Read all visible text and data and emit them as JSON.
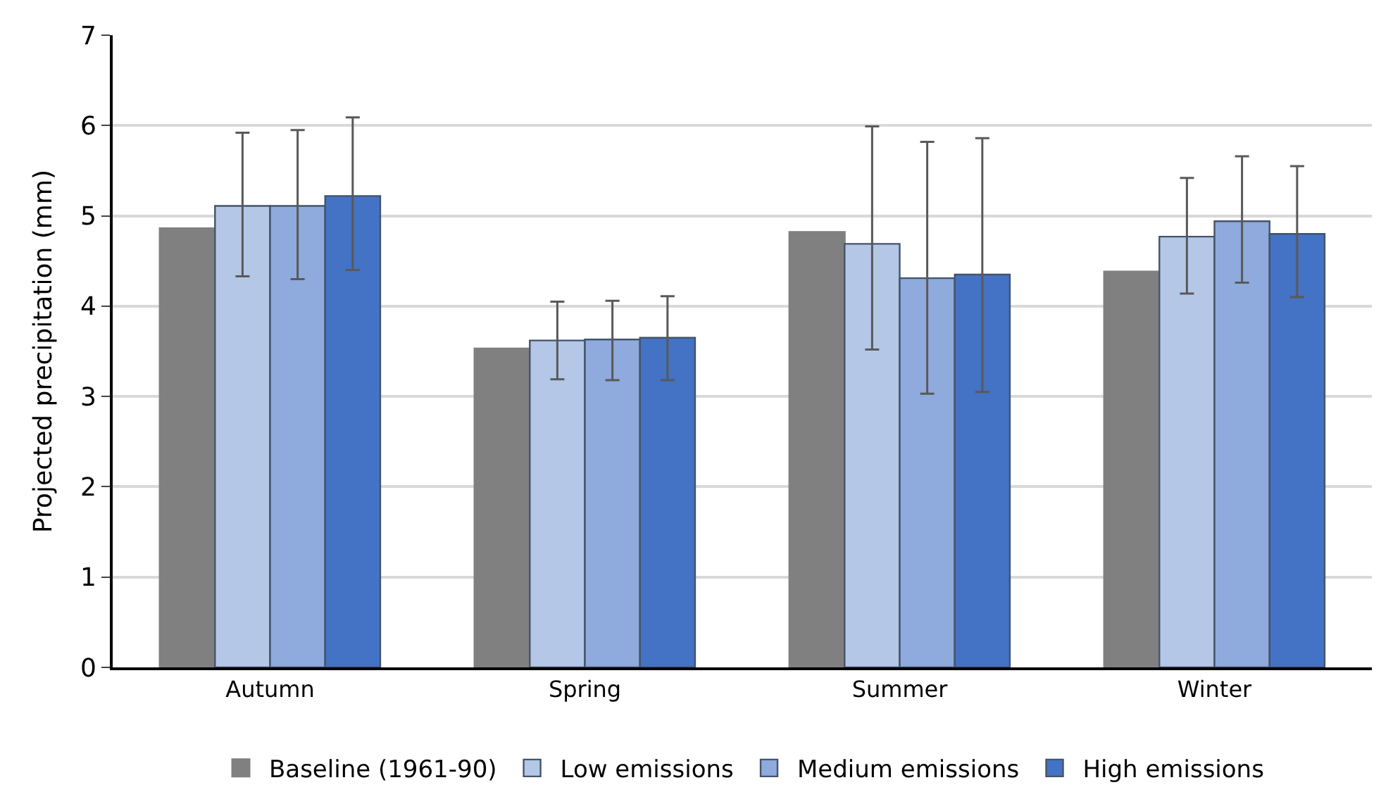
{
  "chart_data": {
    "type": "bar",
    "ylabel": "Projected precipitation (mm)",
    "categories": [
      "Autumn",
      "Spring",
      "Summer",
      "Winter"
    ],
    "series": [
      {
        "name": "Baseline (1961-90)",
        "color": "#808080",
        "values": [
          4.86,
          3.53,
          4.82,
          4.38
        ]
      },
      {
        "name": "Low emissions",
        "color": "#b4c7e7",
        "values": [
          5.11,
          3.62,
          4.69,
          4.77
        ],
        "errors": [
          [
            4.33,
            5.92
          ],
          [
            3.19,
            4.05
          ],
          [
            3.52,
            5.99
          ],
          [
            4.14,
            5.42
          ]
        ]
      },
      {
        "name": "Medium emissions",
        "color": "#8faadc",
        "values": [
          5.11,
          3.63,
          4.31,
          4.94
        ],
        "errors": [
          [
            4.3,
            5.95
          ],
          [
            3.18,
            4.06
          ],
          [
            3.03,
            5.82
          ],
          [
            4.26,
            5.66
          ]
        ]
      },
      {
        "name": "High emissions",
        "color": "#4472c4",
        "values": [
          5.22,
          3.65,
          4.35,
          4.8
        ],
        "errors": [
          [
            4.4,
            6.09
          ],
          [
            3.18,
            4.11
          ],
          [
            3.05,
            5.86
          ],
          [
            4.1,
            5.55
          ]
        ]
      }
    ],
    "ylim": [
      0,
      7
    ],
    "yticks": [
      0,
      1,
      2,
      3,
      4,
      5,
      6,
      7
    ],
    "grid": "y",
    "legend": "bottom"
  }
}
